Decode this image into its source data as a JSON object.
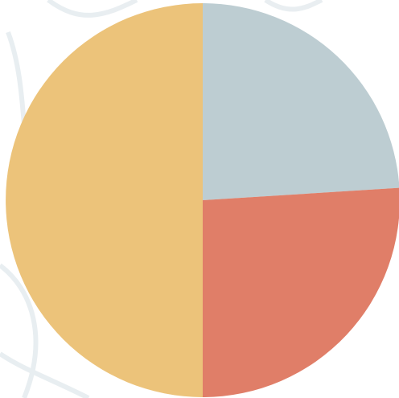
{
  "chart_data": {
    "type": "pie",
    "values": [
      24,
      26,
      50
    ],
    "colors": [
      "#bdcdd2",
      "#e07e68",
      "#ecc37a"
    ]
  }
}
